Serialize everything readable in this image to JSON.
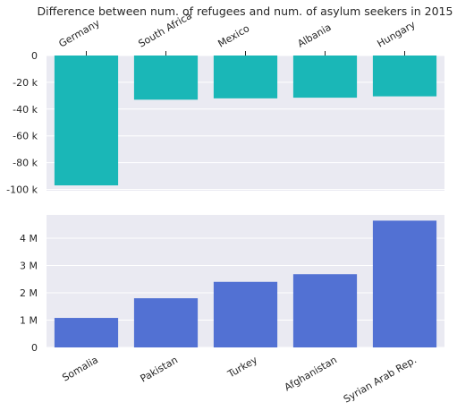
{
  "chart_data": [
    {
      "type": "bar",
      "title": "Difference between num. of refugees and num. of asylum seekers in 2015",
      "categories": [
        "Germany",
        "South Africa",
        "Mexico",
        "Albania",
        "Hungary"
      ],
      "values": [
        -97000,
        -33000,
        -32000,
        -31500,
        -30500
      ],
      "ylim": [
        -101000,
        0
      ],
      "yticks": [
        0,
        -20000,
        -40000,
        -60000,
        -80000,
        -100000
      ],
      "ytick_labels": [
        "0",
        "-20 k",
        "-40 k",
        "-60 k",
        "-80 k",
        "-100 k"
      ],
      "xaxis_position": "top",
      "xtick_rotation": -30,
      "grid": true,
      "bar_color": "#1ab7b7",
      "background_color": "#eaeaf2"
    },
    {
      "type": "bar",
      "categories": [
        "Somalia",
        "Pakistan",
        "Turkey",
        "Afghanistan",
        "Syrian Arab Rep."
      ],
      "values": [
        1080000,
        1800000,
        2400000,
        2680000,
        4640000
      ],
      "ylim": [
        0,
        4850000
      ],
      "yticks": [
        0,
        1000000,
        2000000,
        3000000,
        4000000
      ],
      "ytick_labels": [
        "0",
        "1 M",
        "2 M",
        "3 M",
        "4 M"
      ],
      "xaxis_position": "bottom",
      "xtick_rotation": -30,
      "grid": true,
      "bar_color": "#5271d3",
      "background_color": "#eaeaf2"
    }
  ]
}
